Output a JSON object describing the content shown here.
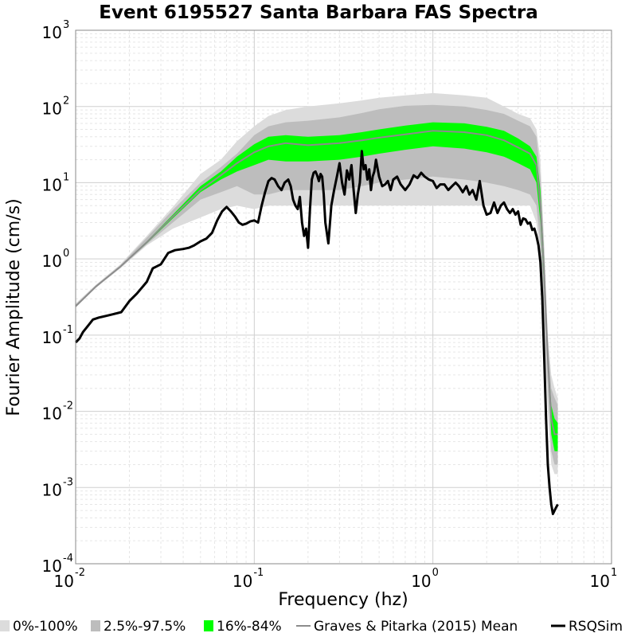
{
  "chart_data": {
    "type": "line",
    "title": "Event 6195527 Santa Barbara FAS Spectra",
    "xlabel": "Frequency (hz)",
    "ylabel": "Fourier Amplitude (cm/s)",
    "x_scale": "log",
    "y_scale": "log",
    "xlim": [
      0.01,
      10
    ],
    "ylim": [
      0.0001,
      1000
    ],
    "x_ticks": [
      {
        "base": "10",
        "exp": "-2"
      },
      {
        "base": "10",
        "exp": "-1"
      },
      {
        "base": "10",
        "exp": "0"
      },
      {
        "base": "10",
        "exp": "1"
      }
    ],
    "y_ticks": [
      {
        "base": "10",
        "exp": "-4"
      },
      {
        "base": "10",
        "exp": "-3"
      },
      {
        "base": "10",
        "exp": "-2"
      },
      {
        "base": "10",
        "exp": "-1"
      },
      {
        "base": "10",
        "exp": "0"
      },
      {
        "base": "10",
        "exp": "1"
      },
      {
        "base": "10",
        "exp": "2"
      },
      {
        "base": "10",
        "exp": "3"
      }
    ],
    "grid": true,
    "legend_position": "bottom",
    "legend": [
      {
        "label": "0%-100%",
        "type": "band",
        "color": "#dcdcdc"
      },
      {
        "label": "2.5%-97.5%",
        "type": "band",
        "color": "#bdbdbd"
      },
      {
        "label": "16%-84%",
        "type": "band",
        "color": "#00ff00"
      },
      {
        "label": "Graves & Pitarka (2015) Mean",
        "type": "line",
        "color": "#8c8c8c"
      },
      {
        "label": "RSQSim",
        "type": "line",
        "color": "#000000"
      }
    ],
    "x": [
      0.01,
      0.013,
      0.0178,
      0.025,
      0.035,
      0.05,
      0.065,
      0.08,
      0.1,
      0.12,
      0.15,
      0.2,
      0.3,
      0.4,
      0.5,
      0.7,
      1.0,
      1.5,
      2.0,
      2.5,
      3.0,
      3.5,
      3.8,
      4.0,
      4.2,
      4.4,
      4.6,
      4.8,
      5.0
    ],
    "bands": [
      {
        "name": "0%-100%",
        "color": "#dcdcdc",
        "lower": [
          0.23,
          0.42,
          0.75,
          1.5,
          2.5,
          3.5,
          4.5,
          5.0,
          4.5,
          5,
          5,
          5,
          5,
          5,
          5,
          5,
          5,
          5,
          5,
          5,
          5,
          5,
          3,
          0.8,
          0.1,
          0.01,
          0.002,
          0.0015,
          0.0015
        ],
        "upper": [
          0.26,
          0.46,
          0.85,
          2.0,
          4.8,
          13,
          20,
          35,
          55,
          75,
          90,
          100,
          110,
          120,
          130,
          140,
          150,
          140,
          130,
          100,
          80,
          70,
          50,
          20,
          1.5,
          0.1,
          0.03,
          0.02,
          0.015
        ]
      },
      {
        "name": "2.5%-97.5%",
        "color": "#bdbdbd",
        "lower": [
          0.23,
          0.42,
          0.77,
          1.55,
          3.0,
          6,
          7.5,
          9,
          7,
          7,
          8,
          8,
          8,
          9,
          10,
          11,
          12,
          11,
          10,
          9,
          8,
          7,
          5,
          1.5,
          0.2,
          0.02,
          0.003,
          0.002,
          0.002
        ],
        "upper": [
          0.25,
          0.45,
          0.82,
          1.9,
          4.4,
          10,
          16,
          24,
          42,
          55,
          62,
          65,
          72,
          82,
          92,
          102,
          105,
          100,
          90,
          80,
          65,
          55,
          40,
          12,
          1.2,
          0.08,
          0.02,
          0.015,
          0.012
        ]
      },
      {
        "name": "16%-84%",
        "color": "#00ff00",
        "lower": [
          0.235,
          0.43,
          0.78,
          1.6,
          3.4,
          7.5,
          11,
          14,
          17,
          20,
          19,
          19,
          20,
          22,
          24,
          27,
          30,
          28,
          25,
          22,
          18,
          15,
          10,
          3,
          0.4,
          0.04,
          0.005,
          0.003,
          0.003
        ],
        "upper": [
          0.245,
          0.44,
          0.8,
          1.7,
          3.8,
          9,
          14,
          22,
          32,
          40,
          42,
          40,
          42,
          46,
          50,
          56,
          62,
          60,
          54,
          48,
          38,
          30,
          22,
          8,
          0.9,
          0.06,
          0.012,
          0.008,
          0.007
        ]
      }
    ],
    "series": [
      {
        "name": "Graves & Pitarka (2015) Mean",
        "color": "#8c8c8c",
        "values": [
          0.24,
          0.435,
          0.79,
          1.65,
          3.6,
          8,
          12.5,
          18,
          25,
          30,
          33,
          31,
          33,
          36,
          39,
          43,
          48,
          46,
          42,
          36,
          29,
          24,
          17,
          5,
          0.6,
          0.05,
          0.008,
          0.005,
          0.005
        ]
      }
    ],
    "rsqsim": {
      "name": "RSQSim",
      "color": "#000000",
      "x": [
        0.01,
        0.0105,
        0.011,
        0.0118,
        0.0125,
        0.0135,
        0.015,
        0.0165,
        0.018,
        0.02,
        0.022,
        0.025,
        0.027,
        0.03,
        0.033,
        0.036,
        0.04,
        0.043,
        0.046,
        0.05,
        0.054,
        0.058,
        0.062,
        0.066,
        0.07,
        0.074,
        0.078,
        0.082,
        0.086,
        0.09,
        0.095,
        0.1,
        0.105,
        0.11,
        0.115,
        0.12,
        0.125,
        0.13,
        0.136,
        0.142,
        0.148,
        0.155,
        0.16,
        0.165,
        0.17,
        0.175,
        0.18,
        0.185,
        0.19,
        0.195,
        0.2,
        0.205,
        0.21,
        0.215,
        0.22,
        0.225,
        0.23,
        0.235,
        0.24,
        0.245,
        0.25,
        0.26,
        0.27,
        0.28,
        0.29,
        0.3,
        0.31,
        0.32,
        0.33,
        0.34,
        0.35,
        0.36,
        0.37,
        0.38,
        0.39,
        0.4,
        0.41,
        0.42,
        0.43,
        0.44,
        0.45,
        0.46,
        0.47,
        0.48,
        0.5,
        0.52,
        0.54,
        0.56,
        0.58,
        0.6,
        0.63,
        0.66,
        0.7,
        0.74,
        0.78,
        0.82,
        0.86,
        0.9,
        0.95,
        1.0,
        1.05,
        1.1,
        1.16,
        1.22,
        1.28,
        1.34,
        1.4,
        1.47,
        1.54,
        1.6,
        1.67,
        1.75,
        1.83,
        1.92,
        2.0,
        2.1,
        2.2,
        2.3,
        2.4,
        2.5,
        2.6,
        2.7,
        2.8,
        2.9,
        3.0,
        3.1,
        3.2,
        3.3,
        3.4,
        3.5,
        3.6,
        3.7,
        3.8,
        3.9,
        4.0,
        4.1,
        4.2,
        4.3,
        4.4,
        4.5,
        4.6,
        4.7,
        4.8,
        4.9,
        5.0
      ],
      "values": [
        0.08,
        0.09,
        0.11,
        0.135,
        0.16,
        0.17,
        0.18,
        0.19,
        0.2,
        0.28,
        0.35,
        0.5,
        0.75,
        0.85,
        1.2,
        1.3,
        1.35,
        1.4,
        1.5,
        1.7,
        1.85,
        2.2,
        3.2,
        4.2,
        4.8,
        4.2,
        3.6,
        3.0,
        2.8,
        2.9,
        3.1,
        3.2,
        3.0,
        5.0,
        7.5,
        10.5,
        11.5,
        11.0,
        9.0,
        8.0,
        10.0,
        11.0,
        9.0,
        6.0,
        5.0,
        4.5,
        6.5,
        3.0,
        2.0,
        2.5,
        1.4,
        4.5,
        11.0,
        13.5,
        14.0,
        12.5,
        10.5,
        13.0,
        12.0,
        7.0,
        3.0,
        1.6,
        5.0,
        8.0,
        12.0,
        18.0,
        10.0,
        7.0,
        14.5,
        11.0,
        17.0,
        8.0,
        4.0,
        7.0,
        10.0,
        26.0,
        15.0,
        17.0,
        11.0,
        15.0,
        8.0,
        12.0,
        14.0,
        20.0,
        12.0,
        9.0,
        9.5,
        10.5,
        8.0,
        11.0,
        12.0,
        9.5,
        8.0,
        9.5,
        12.5,
        11.5,
        13.5,
        12.0,
        11.0,
        10.5,
        8.5,
        9.5,
        9.5,
        8.0,
        9.0,
        10.0,
        9.0,
        7.5,
        9.0,
        7.0,
        8.0,
        6.0,
        10.5,
        5.0,
        3.8,
        4.0,
        5.5,
        4.0,
        5.0,
        5.5,
        4.5,
        4.0,
        4.5,
        3.8,
        4.2,
        2.8,
        3.4,
        3.3,
        2.9,
        3.0,
        2.4,
        2.5,
        2.0,
        1.5,
        0.9,
        0.3,
        0.05,
        0.008,
        0.002,
        0.001,
        0.0006,
        0.00045,
        0.0005,
        0.00055,
        0.0006
      ]
    }
  }
}
